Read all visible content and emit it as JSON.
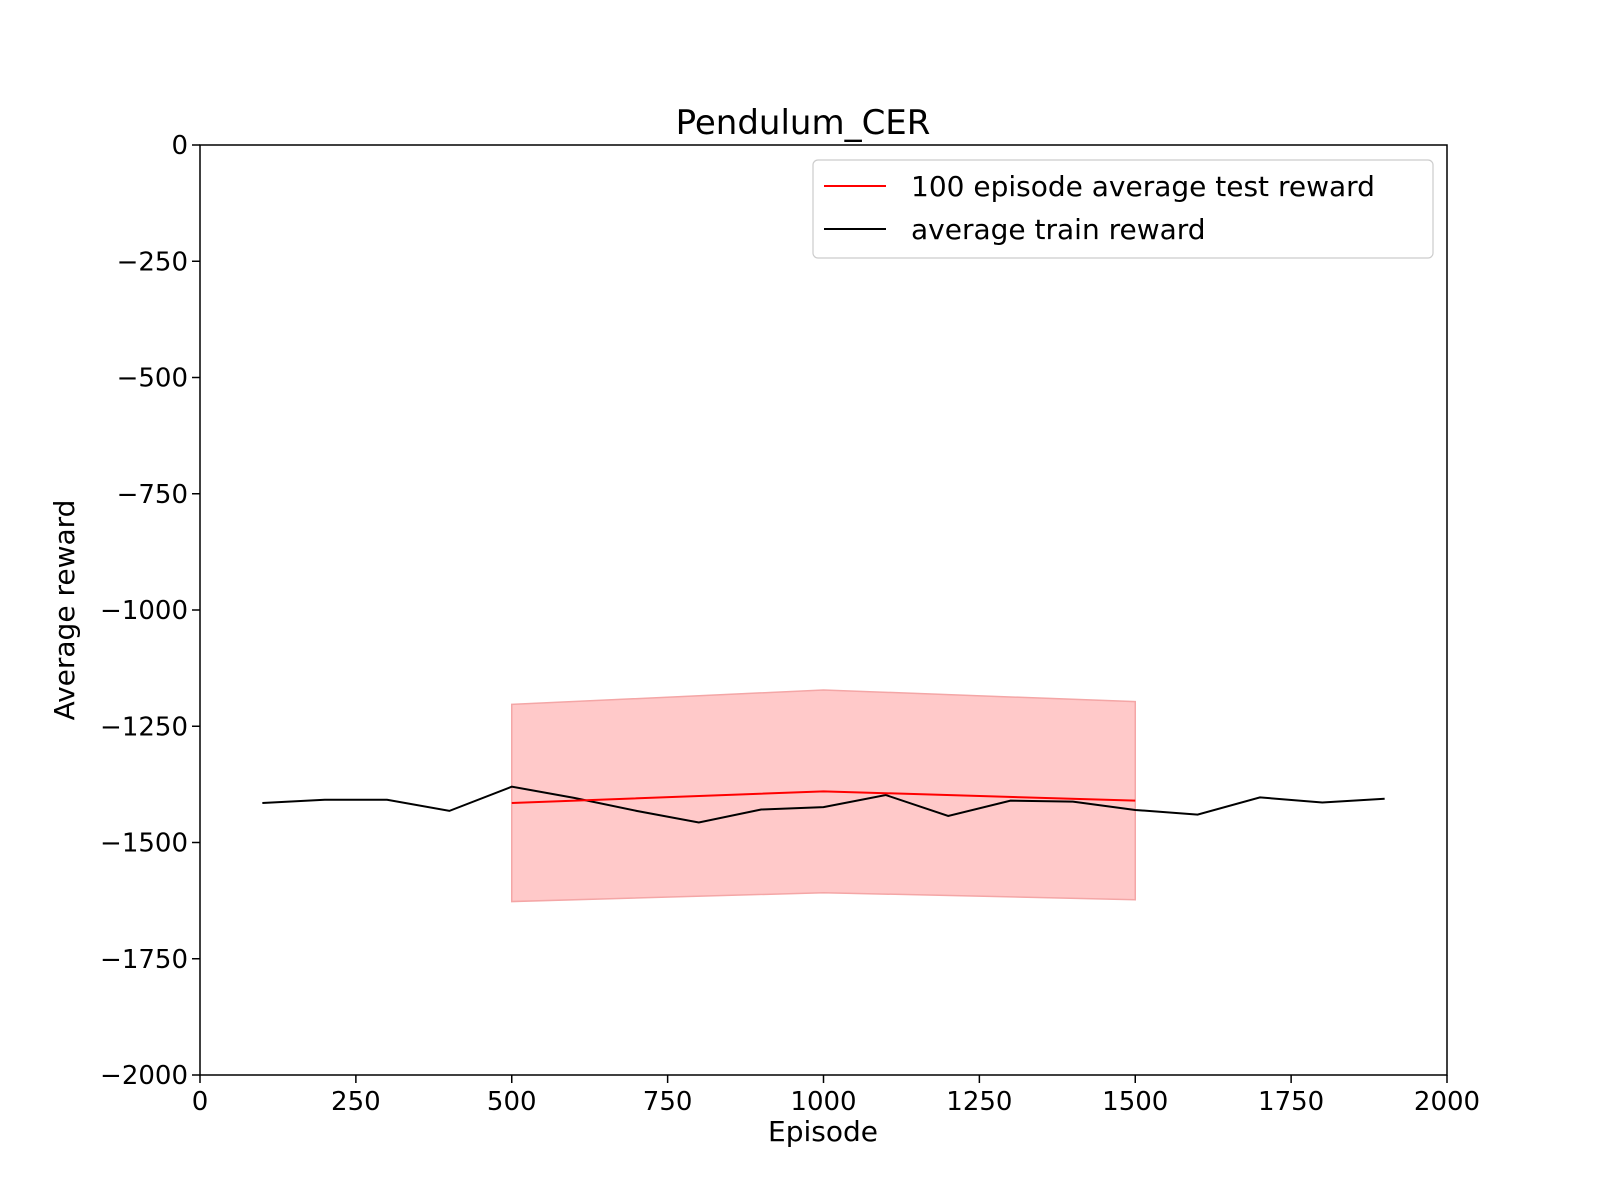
{
  "chart_data": {
    "type": "line",
    "title": "Pendulum_CER",
    "xlabel": "Episode",
    "ylabel": "Average reward",
    "xlim": [
      0,
      2000
    ],
    "ylim": [
      -2000,
      0
    ],
    "xticks": [
      0,
      250,
      500,
      750,
      1000,
      1250,
      1500,
      1750,
      2000
    ],
    "yticks": [
      0,
      -250,
      -500,
      -750,
      -1000,
      -1250,
      -1500,
      -1750,
      -2000
    ],
    "grid": false,
    "legend": "top-right",
    "series": [
      {
        "name": "100 episode average test reward",
        "color": "#ff0000",
        "x": [
          500,
          1000,
          1500
        ],
        "y": [
          -1415,
          -1390,
          -1410
        ],
        "band_upper": [
          -1203,
          -1172,
          -1197
        ],
        "band_lower": [
          -1627,
          -1608,
          -1623
        ],
        "band_color": "#ffc9c9"
      },
      {
        "name": "average train reward",
        "color": "#000000",
        "x": [
          100,
          200,
          300,
          400,
          500,
          600,
          700,
          800,
          900,
          1000,
          1100,
          1200,
          1300,
          1400,
          1500,
          1600,
          1700,
          1800,
          1900
        ],
        "y": [
          -1415,
          -1408,
          -1408,
          -1432,
          -1380,
          -1404,
          -1432,
          -1457,
          -1429,
          -1424,
          -1398,
          -1443,
          -1410,
          -1412,
          -1430,
          -1440,
          -1403,
          -1414,
          -1406
        ]
      }
    ]
  }
}
